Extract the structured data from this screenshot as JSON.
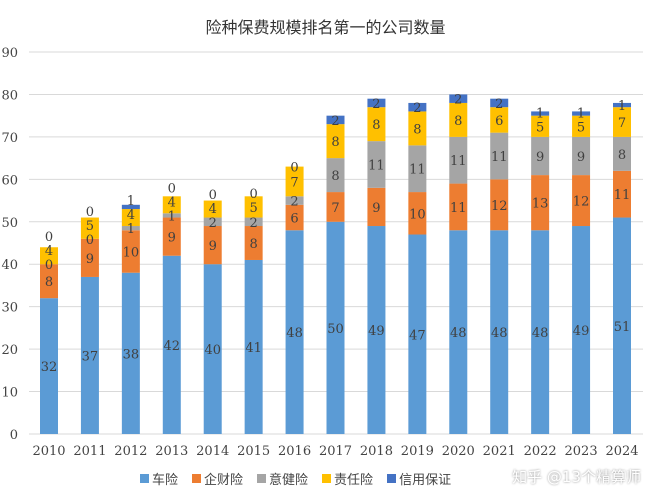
{
  "chart_data": {
    "type": "bar",
    "stacked": true,
    "title": "险种保费规模排名第一的公司数量",
    "categories": [
      "2010",
      "2011",
      "2012",
      "2013",
      "2014",
      "2015",
      "2016",
      "2017",
      "2018",
      "2019",
      "2020",
      "2021",
      "2022",
      "2023",
      "2024"
    ],
    "series": [
      {
        "name": "车险",
        "color": "#5B9BD5",
        "values": [
          32,
          37,
          38,
          42,
          40,
          41,
          48,
          50,
          49,
          47,
          48,
          48,
          48,
          49,
          51
        ]
      },
      {
        "name": "企财险",
        "color": "#ED7D31",
        "values": [
          8,
          9,
          10,
          9,
          9,
          8,
          6,
          7,
          9,
          10,
          11,
          12,
          13,
          12,
          11
        ]
      },
      {
        "name": "意健险",
        "color": "#A5A5A5",
        "values": [
          0,
          0,
          1,
          1,
          2,
          2,
          2,
          8,
          11,
          11,
          11,
          11,
          9,
          9,
          8
        ]
      },
      {
        "name": "责任险",
        "color": "#FFC000",
        "values": [
          4,
          5,
          4,
          4,
          4,
          5,
          7,
          8,
          8,
          8,
          8,
          6,
          5,
          5,
          7
        ]
      },
      {
        "name": "信用保证",
        "color": "#4472C4",
        "values": [
          0,
          0,
          1,
          0,
          0,
          0,
          0,
          2,
          2,
          2,
          2,
          2,
          1,
          1,
          1
        ]
      }
    ],
    "ylim": [
      0,
      90
    ],
    "yticks": [
      "0",
      "10",
      "20",
      "30",
      "40",
      "50",
      "60",
      "70",
      "80",
      "90"
    ],
    "grid": true,
    "legend": "bottom"
  },
  "watermark": "知乎 @13个精算师"
}
